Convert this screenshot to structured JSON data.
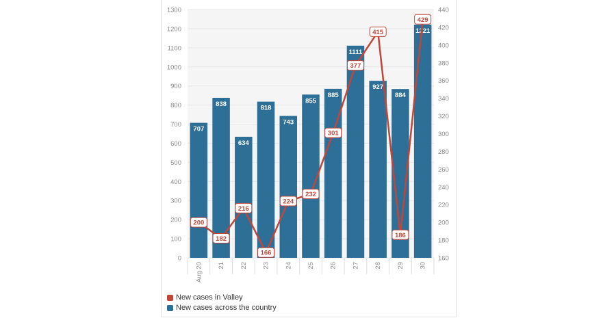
{
  "colors": {
    "bar": "#2e6f97",
    "line": "#c0463a",
    "plot_bg": "#f5f5f5",
    "grid": "#e6e6e6",
    "axis_text": "#8a8a8a"
  },
  "chart_data": {
    "type": "bar",
    "title": "",
    "categories": [
      "Aug 20",
      "21",
      "22",
      "23",
      "24",
      "25",
      "26",
      "27",
      "28",
      "29",
      "30"
    ],
    "series": [
      {
        "name": "New cases across the country",
        "type": "bar",
        "axis": "left",
        "values": [
          707,
          838,
          634,
          818,
          743,
          855,
          885,
          1111,
          927,
          884,
          1221
        ]
      },
      {
        "name": "New cases in Valley",
        "type": "line",
        "axis": "right",
        "values": [
          200,
          182,
          216,
          166,
          224,
          232,
          301,
          377,
          415,
          186,
          429
        ]
      }
    ],
    "left_axis": {
      "ylim": [
        0,
        1300
      ],
      "ticks": [
        0,
        100,
        200,
        300,
        400,
        500,
        600,
        700,
        800,
        900,
        1000,
        1100,
        1200,
        1300
      ]
    },
    "right_axis": {
      "ylim": [
        160,
        440
      ],
      "ticks": [
        160,
        180,
        200,
        220,
        240,
        260,
        280,
        300,
        320,
        340,
        360,
        380,
        400,
        420,
        440
      ]
    },
    "legend": [
      {
        "label": "New cases in Valley",
        "color": "#c0463a"
      },
      {
        "label": "New cases across the country",
        "color": "#2e6f97"
      }
    ]
  }
}
